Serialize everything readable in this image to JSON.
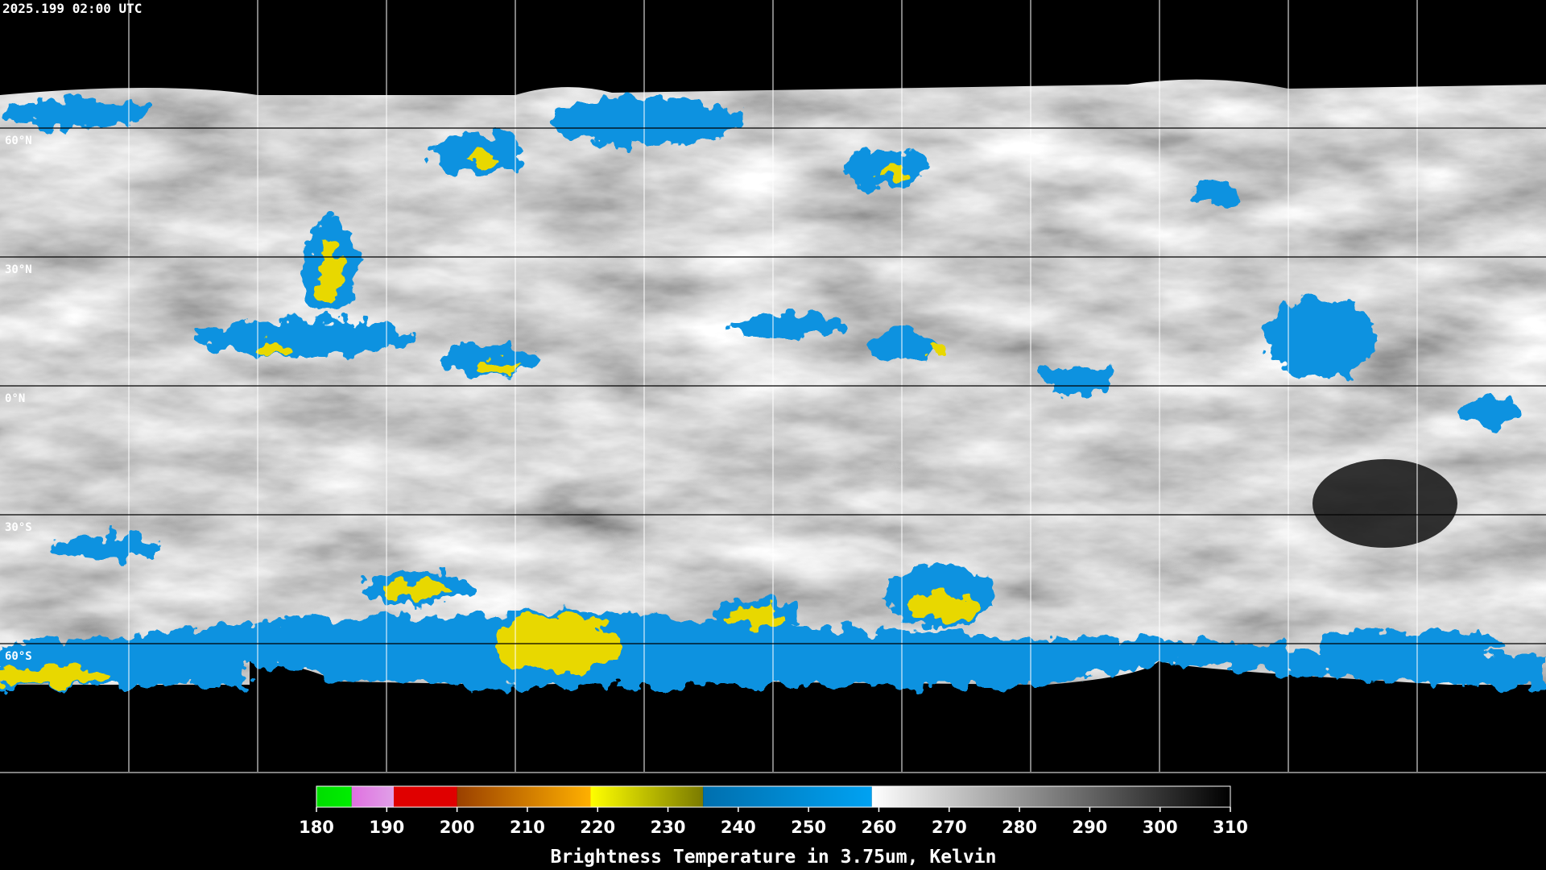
{
  "header": {
    "timestamp": "2025.199 02:00 UTC"
  },
  "map": {
    "latitude_labels": [
      "60°N",
      "30°N",
      "0°N",
      "30°S",
      "60°S"
    ]
  },
  "colorbar": {
    "title": "Brightness Temperature in 3.75um, Kelvin",
    "range": [
      180,
      310
    ],
    "ticks": [
      180,
      190,
      200,
      210,
      220,
      230,
      240,
      250,
      260,
      270,
      280,
      290,
      300,
      310
    ],
    "stops": [
      {
        "from": 180,
        "to": 185,
        "colors": [
          "#00dd00",
          "#00ee00"
        ]
      },
      {
        "from": 185,
        "to": 191,
        "colors": [
          "#e070e0",
          "#e0a0e8"
        ]
      },
      {
        "from": 191,
        "to": 200,
        "colors": [
          "#e00000",
          "#e00000"
        ]
      },
      {
        "from": 200,
        "to": 219,
        "colors": [
          "#9a4000",
          "#ffb000"
        ]
      },
      {
        "from": 219,
        "to": 235,
        "colors": [
          "#ffff00",
          "#7a7a00"
        ]
      },
      {
        "from": 235,
        "to": 259,
        "colors": [
          "#006fae",
          "#00a2f2"
        ]
      },
      {
        "from": 259,
        "to": 310,
        "colors": [
          "#ffffff",
          "#000000"
        ]
      }
    ]
  }
}
